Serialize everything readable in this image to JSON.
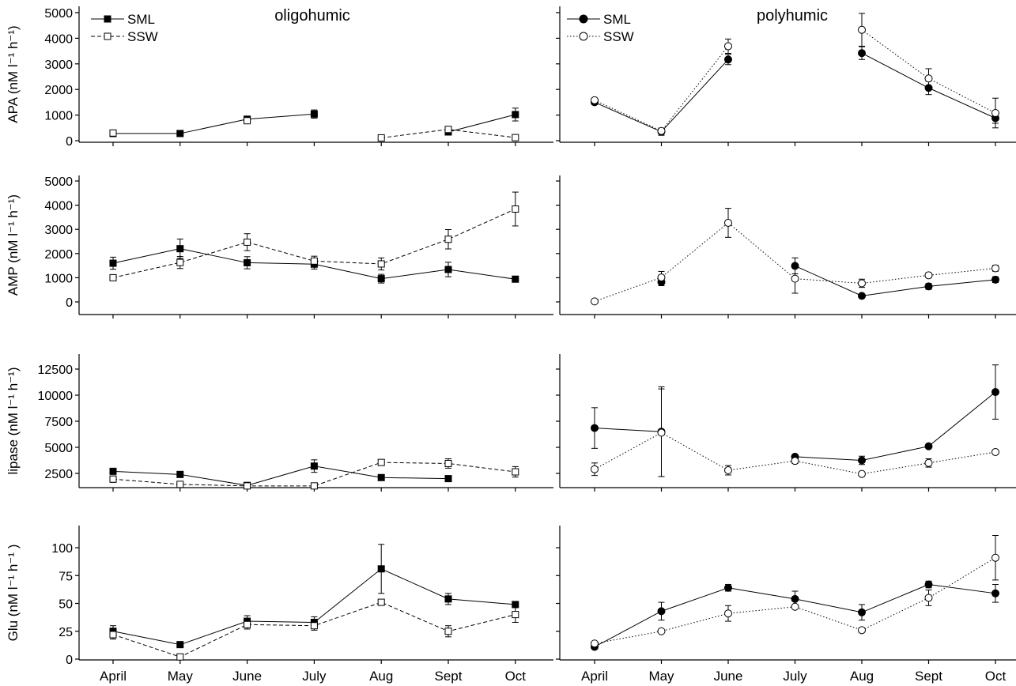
{
  "chart_data": {
    "type": "line",
    "x": [
      "April",
      "May",
      "June",
      "July",
      "Aug",
      "Sept",
      "Oct"
    ],
    "columns": [
      {
        "title": "oligohumic",
        "sml_marker": "square",
        "ssw_dash": "dashed"
      },
      {
        "title": "polyhumic",
        "sml_marker": "circle",
        "ssw_dash": "dotted"
      }
    ],
    "legend": [
      {
        "label": "SML",
        "filled": true
      },
      {
        "label": "SSW",
        "filled": false
      }
    ],
    "rows": [
      {
        "ylabel": "APA (nM l⁻¹ h⁻¹)",
        "ylim": [
          0,
          5200
        ],
        "yticks": [
          0,
          1000,
          2000,
          3000,
          4000,
          5000
        ],
        "panels": [
          {
            "series": [
              {
                "name": "SML",
                "values": [
                  280,
                  280,
                  840,
                  1040,
                  null,
                  340,
                  1020
                ],
                "err": [
                  30,
                  30,
                  70,
                  160,
                  null,
                  50,
                  250
                ]
              },
              {
                "name": "SSW",
                "values": [
                  300,
                  null,
                  780,
                  null,
                  110,
                  440,
                  120
                ],
                "err": [
                  30,
                  null,
                  70,
                  null,
                  30,
                  100,
                  60
                ]
              }
            ]
          },
          {
            "series": [
              {
                "name": "SML",
                "values": [
                  1500,
                  350,
                  3170,
                  null,
                  3420,
                  2060,
                  880
                ],
                "err": [
                  90,
                  140,
                  200,
                  null,
                  250,
                  260,
                  200
                ]
              },
              {
                "name": "SSW",
                "values": [
                  1580,
                  380,
                  3690,
                  null,
                  4330,
                  2430,
                  1080
                ],
                "err": [
                  80,
                  100,
                  280,
                  null,
                  640,
                  380,
                  580
                ]
              }
            ]
          }
        ]
      },
      {
        "ylabel": "AMP (nM l⁻¹ h⁻¹)",
        "ylim": [
          -500,
          5000
        ],
        "yticks": [
          0,
          1000,
          2000,
          3000,
          4000,
          5000
        ],
        "panels": [
          {
            "series": [
              {
                "name": "SML",
                "values": [
                  1600,
                  2200,
                  1620,
                  1560,
                  960,
                  1340,
                  940
                ],
                "err": [
                  250,
                  400,
                  250,
                  200,
                  180,
                  300,
                  100
                ]
              },
              {
                "name": "SSW",
                "values": [
                  1000,
                  1630,
                  2470,
                  1690,
                  1570,
                  2590,
                  3840
                ],
                "err": [
                  60,
                  250,
                  350,
                  200,
                  250,
                  400,
                  700
                ]
              }
            ]
          },
          {
            "series": [
              {
                "name": "SML",
                "values": [
                  null,
                  820,
                  null,
                  1490,
                  250,
                  640,
                  920
                ],
                "err": [
                  null,
                  150,
                  null,
                  330,
                  40,
                  120,
                  120
                ]
              },
              {
                "name": "SSW",
                "values": [
                  20,
                  1010,
                  3270,
                  960,
                  770,
                  1100,
                  1390
                ],
                "err": [
                  30,
                  250,
                  600,
                  600,
                  170,
                  100,
                  120
                ]
              }
            ]
          }
        ]
      },
      {
        "ylabel": "lipase (nM l⁻¹ h⁻¹)",
        "ylim": [
          1000,
          14000
        ],
        "yticks": [
          2500,
          5000,
          7500,
          10000,
          12500
        ],
        "panels": [
          {
            "series": [
              {
                "name": "SML",
                "values": [
                  2700,
                  2400,
                  1350,
                  3200,
                  2100,
                  2000,
                  null
                ],
                "err": [
                  150,
                  150,
                  100,
                  600,
                  150,
                  150,
                  null
                ]
              },
              {
                "name": "SSW",
                "values": [
                  1950,
                  1450,
                  1300,
                  1300,
                  3550,
                  3450,
                  2650
                ],
                "err": [
                  300,
                  150,
                  100,
                  150,
                  200,
                  450,
                  500
                ]
              }
            ]
          },
          {
            "series": [
              {
                "name": "SML",
                "values": [
                  6850,
                  6500,
                  null,
                  4100,
                  3750,
                  5100,
                  10300
                ],
                "err": [
                  1950,
                  4300,
                  null,
                  200,
                  400,
                  150,
                  2600
                ]
              },
              {
                "name": "SSW",
                "values": [
                  2900,
                  6400,
                  2800,
                  3700,
                  2450,
                  3500,
                  4550
                ],
                "err": [
                  600,
                  4200,
                  450,
                  250,
                  150,
                  400,
                  150
                ]
              }
            ]
          }
        ]
      },
      {
        "ylabel": "Glu (nM l⁻¹ h⁻¹ )",
        "ylim": [
          0,
          120
        ],
        "yticks": [
          0,
          25,
          50,
          75,
          100
        ],
        "panels": [
          {
            "series": [
              {
                "name": "SML",
                "values": [
                  25,
                  13,
                  34,
                  33,
                  81,
                  54,
                  49
                ],
                "err": [
                  5,
                  1,
                  5,
                  5,
                  22,
                  5,
                  1
                ]
              },
              {
                "name": "SSW",
                "values": [
                  22,
                  2,
                  31,
                  30,
                  51,
                  25,
                  40
                ],
                "err": [
                  4,
                  2,
                  4,
                  4,
                  2,
                  5,
                  7
                ]
              }
            ]
          },
          {
            "series": [
              {
                "name": "SML",
                "values": [
                  11,
                  43,
                  64,
                  54,
                  42,
                  67,
                  59
                ],
                "err": [
                  1,
                  8,
                  3,
                  7,
                  7,
                  3,
                  8
                ]
              },
              {
                "name": "SSW",
                "values": [
                  14,
                  25,
                  41,
                  47,
                  26,
                  55,
                  91
                ],
                "err": [
                  1,
                  1,
                  7,
                  1,
                  1,
                  7,
                  20
                ]
              }
            ]
          }
        ]
      }
    ]
  }
}
